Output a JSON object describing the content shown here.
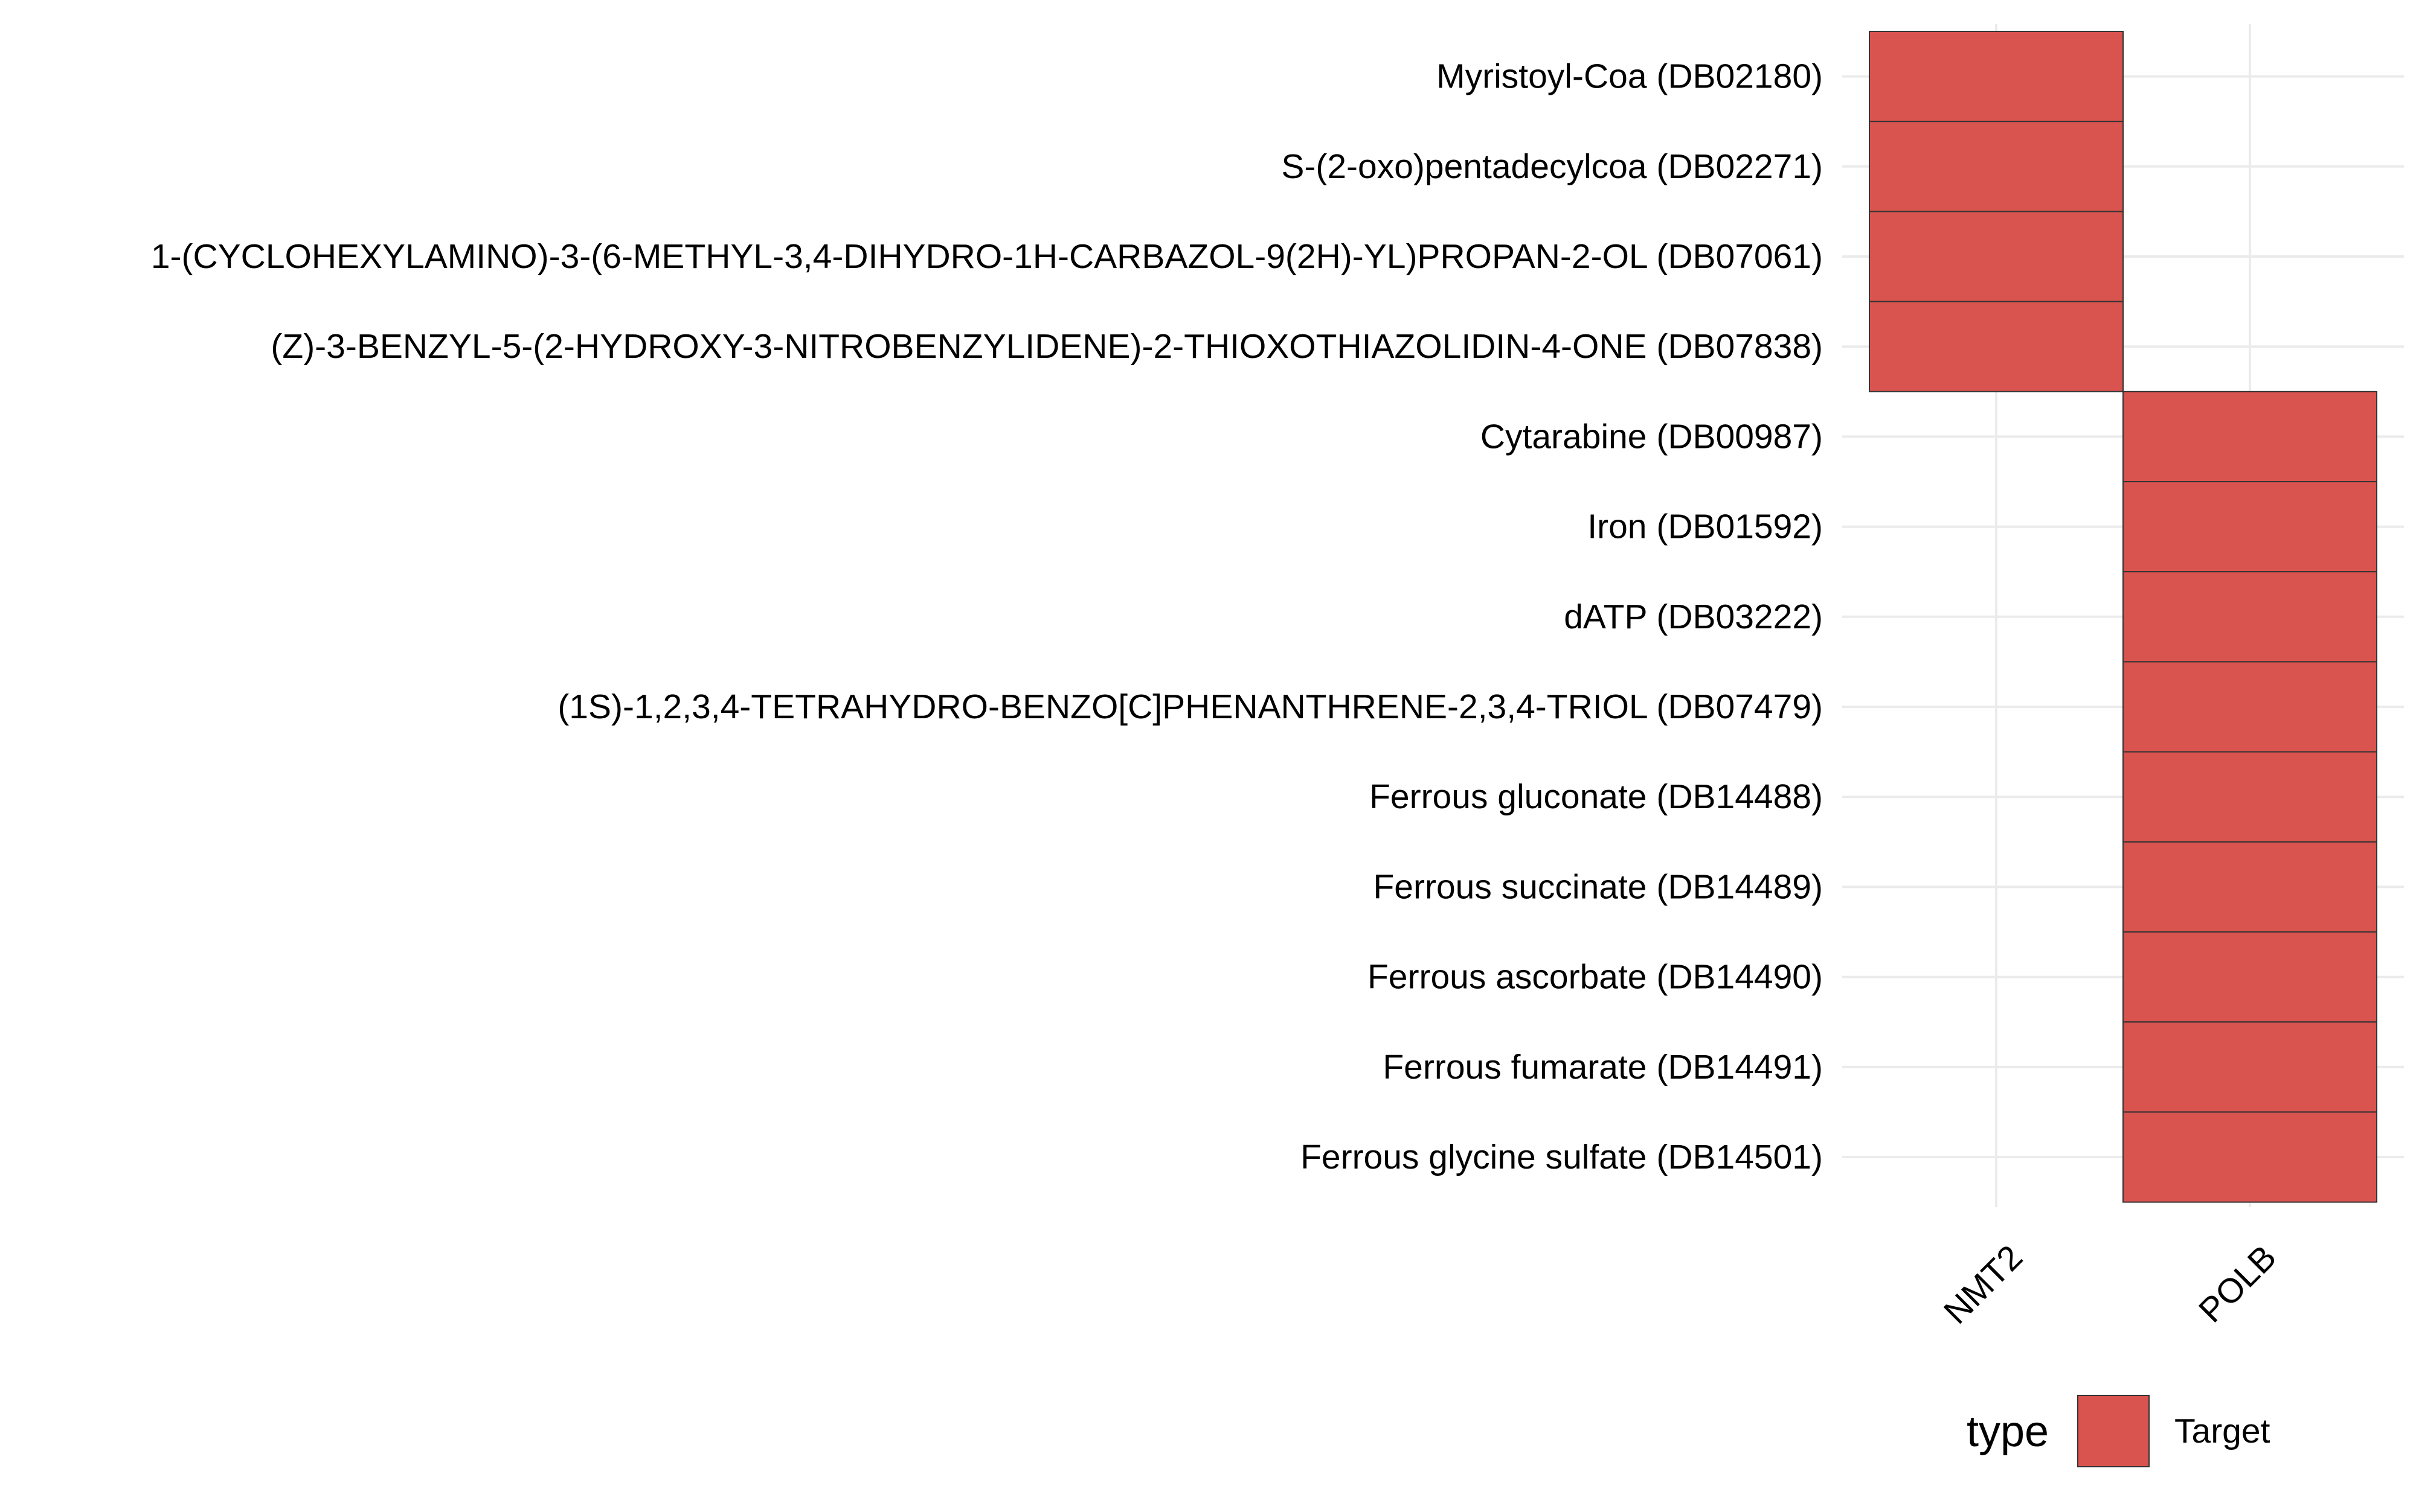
{
  "chart_data": {
    "type": "heatmap",
    "title": "",
    "xlabel": "",
    "ylabel": "",
    "x_categories": [
      "NMT2",
      "POLB"
    ],
    "y_categories": [
      "Myristoyl-Coa (DB02180)",
      "S-(2-oxo)pentadecylcoa (DB02271)",
      "1-(CYCLOHEXYLAMINO)-3-(6-METHYL-3,4-DIHYDRO-1H-CARBAZOL-9(2H)-YL)PROPAN-2-OL (DB07061)",
      "(Z)-3-BENZYL-5-(2-HYDROXY-3-NITROBENZYLIDENE)-2-THIOXOTHIAZOLIDIN-4-ONE (DB07838)",
      "Cytarabine (DB00987)",
      "Iron (DB01592)",
      "dATP (DB03222)",
      "(1S)-1,2,3,4-TETRAHYDRO-BENZO[C]PHENANTHRENE-2,3,4-TRIOL (DB07479)",
      "Ferrous gluconate (DB14488)",
      "Ferrous succinate (DB14489)",
      "Ferrous ascorbate (DB14490)",
      "Ferrous fumarate (DB14491)",
      "Ferrous glycine sulfate (DB14501)"
    ],
    "cells": [
      {
        "drug": "Myristoyl-Coa (DB02180)",
        "gene": "NMT2",
        "type": "Target"
      },
      {
        "drug": "S-(2-oxo)pentadecylcoa (DB02271)",
        "gene": "NMT2",
        "type": "Target"
      },
      {
        "drug": "1-(CYCLOHEXYLAMINO)-3-(6-METHYL-3,4-DIHYDRO-1H-CARBAZOL-9(2H)-YL)PROPAN-2-OL (DB07061)",
        "gene": "NMT2",
        "type": "Target"
      },
      {
        "drug": "(Z)-3-BENZYL-5-(2-HYDROXY-3-NITROBENZYLIDENE)-2-THIOXOTHIAZOLIDIN-4-ONE (DB07838)",
        "gene": "NMT2",
        "type": "Target"
      },
      {
        "drug": "Cytarabine (DB00987)",
        "gene": "POLB",
        "type": "Target"
      },
      {
        "drug": "Iron (DB01592)",
        "gene": "POLB",
        "type": "Target"
      },
      {
        "drug": "dATP (DB03222)",
        "gene": "POLB",
        "type": "Target"
      },
      {
        "drug": "(1S)-1,2,3,4-TETRAHYDRO-BENZO[C]PHENANTHRENE-2,3,4-TRIOL (DB07479)",
        "gene": "POLB",
        "type": "Target"
      },
      {
        "drug": "Ferrous gluconate (DB14488)",
        "gene": "POLB",
        "type": "Target"
      },
      {
        "drug": "Ferrous succinate (DB14489)",
        "gene": "POLB",
        "type": "Target"
      },
      {
        "drug": "Ferrous ascorbate (DB14490)",
        "gene": "POLB",
        "type": "Target"
      },
      {
        "drug": "Ferrous fumarate (DB14491)",
        "gene": "POLB",
        "type": "Target"
      },
      {
        "drug": "Ferrous glycine sulfate (DB14501)",
        "gene": "POLB",
        "type": "Target"
      }
    ],
    "legend": {
      "title": "type",
      "position": "bottom-right",
      "entries": [
        {
          "label": "Target",
          "color": "#d9534f"
        }
      ]
    },
    "grid": true,
    "colors": {
      "Target": "#d9534f",
      "grid": "#ebebeb",
      "cell_border": "#333333"
    }
  }
}
